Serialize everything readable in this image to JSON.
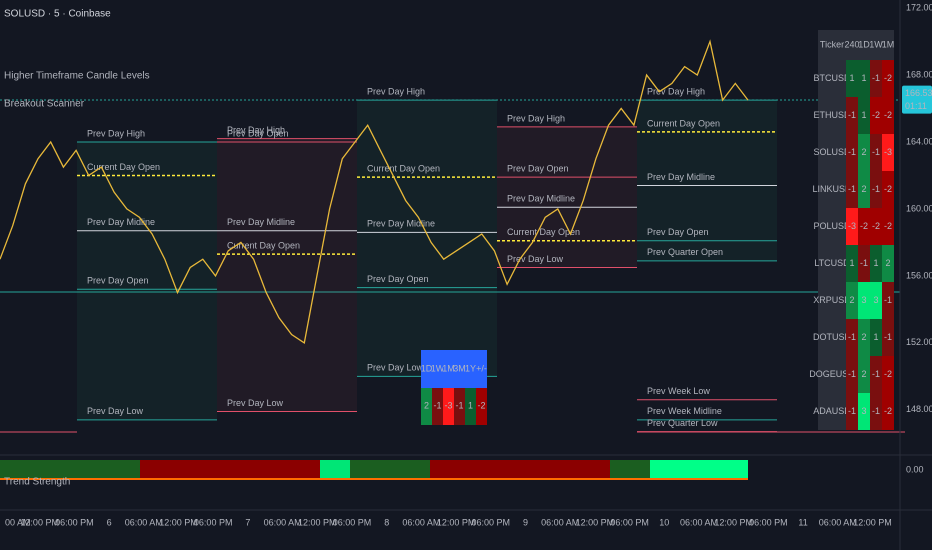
{
  "header": {
    "symbol": "SOLUSD · 5 · Coinbase",
    "indicators": [
      "Higher Timeframe Candle Levels",
      "Breakout Scanner"
    ],
    "lower_pane": "Trend Strength"
  },
  "price_axis": {
    "ylim": [
      145.6,
      172.48
    ],
    "ticks": [
      {
        "value": 172,
        "label": "172.00"
      },
      {
        "value": 168,
        "label": "168.00"
      },
      {
        "value": 164,
        "label": "164.00"
      },
      {
        "value": 160,
        "label": "160.00"
      },
      {
        "value": 156,
        "label": "156.00"
      },
      {
        "value": 152,
        "label": "152.00"
      },
      {
        "value": 148,
        "label": "148.00"
      }
    ],
    "last_price": 166.53,
    "countdown": "01:11"
  },
  "lower_axis": {
    "tick": {
      "value": 0,
      "label": "0.00"
    }
  },
  "price_series": {
    "color": "#e8b93a",
    "values": [
      157,
      159,
      161.5,
      163,
      164,
      162.5,
      163.5,
      162,
      162.5,
      161,
      160,
      159.5,
      158.5,
      157,
      155,
      156.5,
      157,
      156,
      157.5,
      158,
      157,
      155,
      153.5,
      152.5,
      152,
      156,
      160,
      163,
      164,
      165,
      163.5,
      162,
      160.5,
      159.5,
      158,
      157,
      157.5,
      158,
      158.5,
      157.5,
      155.5,
      157,
      158,
      159.5,
      160,
      158.5,
      160.5,
      163,
      165,
      166,
      165,
      168,
      167,
      167.5,
      168.5,
      168,
      170,
      166.5,
      167.5,
      166.5
    ]
  },
  "level_groups": [
    {
      "label_color": "#2bbf7e",
      "levels": [
        {
          "label": "Prev Day High",
          "price": 164.0,
          "color": "#26a69a"
        },
        {
          "label": "Current Day Open",
          "price": 162.0,
          "color": "#ffeb3b",
          "dashed": true
        },
        {
          "label": "Prev Day Midline",
          "price": 158.7,
          "color": "#d1d4dc"
        },
        {
          "label": "Prev Day Open",
          "price": 155.2,
          "color": "#26a69a"
        },
        {
          "label": "Prev Day Low",
          "price": 147.4,
          "color": "#26a69a"
        }
      ]
    },
    {
      "label_color": "#e0506a",
      "levels": [
        {
          "label": "Prev Day High",
          "price": 164.2,
          "color": "#e0506a"
        },
        {
          "label": "Prev Day Open",
          "price": 164.0,
          "color": "#e0506a"
        },
        {
          "label": "Prev Day Midline",
          "price": 158.7,
          "color": "#d1d4dc"
        },
        {
          "label": "Current Day Open",
          "price": 157.3,
          "color": "#ffeb3b",
          "dashed": true
        },
        {
          "label": "Prev Day Low",
          "price": 147.9,
          "color": "#e0506a"
        }
      ]
    },
    {
      "label_color": "#2bbf7e",
      "levels": [
        {
          "label": "Prev Day High",
          "price": 166.5,
          "color": "#26a69a"
        },
        {
          "label": "Current Day Open",
          "price": 161.9,
          "color": "#ffeb3b",
          "dashed": true
        },
        {
          "label": "Prev Day Midline",
          "price": 158.6,
          "color": "#d1d4dc"
        },
        {
          "label": "Prev Day Open",
          "price": 155.3,
          "color": "#26a69a"
        },
        {
          "label": "Prev Day Low",
          "price": 150.0,
          "color": "#26a69a"
        }
      ]
    },
    {
      "label_color": "#e0506a",
      "levels": [
        {
          "label": "Prev Day High",
          "price": 164.9,
          "color": "#e0506a"
        },
        {
          "label": "Prev Day Open",
          "price": 161.9,
          "color": "#e0506a"
        },
        {
          "label": "Prev Day Midline",
          "price": 160.1,
          "color": "#d1d4dc"
        },
        {
          "label": "Current Day Open",
          "price": 158.1,
          "color": "#ffeb3b",
          "dashed": true
        },
        {
          "label": "Prev Day Low",
          "price": 156.5,
          "color": "#e0506a"
        }
      ]
    },
    {
      "label_color": "#2bbf7e",
      "levels": [
        {
          "label": "Prev Day High",
          "price": 166.5,
          "color": "#26a69a"
        },
        {
          "label": "Current Day Open",
          "price": 164.6,
          "color": "#ffeb3b",
          "dashed": true
        },
        {
          "label": "Prev Day Midline",
          "price": 161.4,
          "color": "#d1d4dc"
        },
        {
          "label": "Prev Day Open",
          "price": 158.1,
          "color": "#26a69a"
        },
        {
          "label": "Prev Quarter Open",
          "price": 156.9,
          "color": "#26a69a"
        },
        {
          "label": "Prev Week Low",
          "price": 148.6,
          "color": "#e0506a"
        },
        {
          "label": "Prev Week Midline",
          "price": 147.4,
          "color": "#26a69a"
        },
        {
          "label": "Prev Quarter Low",
          "price": 146.7,
          "color": "#e0506a"
        }
      ]
    }
  ],
  "time_axis": {
    "labels": [
      "00 AM",
      "12:00 PM",
      "06:00 PM",
      "6",
      "06:00 AM",
      "12:00 PM",
      "06:00 PM",
      "7",
      "06:00 AM",
      "12:00 PM",
      "06:00 PM",
      "8",
      "06:00 AM",
      "12:00 PM",
      "06:00 PM",
      "9",
      "06:00 AM",
      "12:00 PM",
      "06:00 PM",
      "10",
      "06:00 AM",
      "12:00 PM",
      "06:00 PM",
      "11",
      "06:00 AM",
      "12:00 PM"
    ]
  },
  "scanner": {
    "columns": [
      "Ticker",
      "240",
      "1D",
      "1W",
      "1M"
    ],
    "rows": [
      {
        "ticker": "BTCUSD",
        "values": [
          1,
          1,
          -1,
          -2
        ]
      },
      {
        "ticker": "ETHUSD",
        "values": [
          -1,
          1,
          -2,
          -2
        ]
      },
      {
        "ticker": "SOLUSD",
        "values": [
          -1,
          2,
          -1,
          -3
        ]
      },
      {
        "ticker": "LINKUSD",
        "values": [
          -1,
          2,
          -1,
          -2
        ]
      },
      {
        "ticker": "POLUSD",
        "values": [
          -3,
          -2,
          -2,
          -2
        ]
      },
      {
        "ticker": "LTCUSD",
        "values": [
          1,
          -1,
          1,
          2
        ]
      },
      {
        "ticker": "XRPUSD",
        "values": [
          2,
          3,
          3,
          -1
        ]
      },
      {
        "ticker": "DOTUSD",
        "values": [
          -1,
          2,
          1,
          -1
        ]
      },
      {
        "ticker": "DOGEUSD",
        "values": [
          -1,
          2,
          -1,
          -2
        ]
      },
      {
        "ticker": "ADAUSD",
        "values": [
          -1,
          3,
          -1,
          -2
        ]
      }
    ]
  },
  "summary_table": {
    "columns": [
      "1D",
      "1W",
      "1M",
      "3M",
      "1Y",
      "+/-"
    ],
    "values": [
      2,
      -1,
      -3,
      -1,
      1,
      -2
    ]
  }
}
